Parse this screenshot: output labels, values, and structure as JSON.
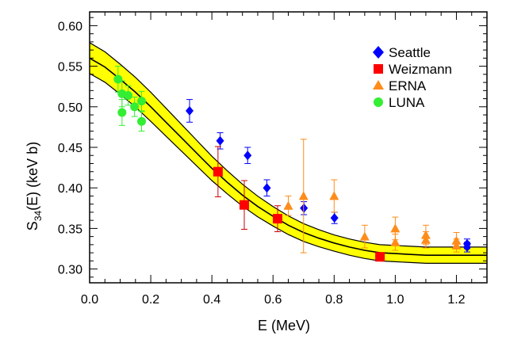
{
  "chart_data": {
    "type": "scatter",
    "xlabel": "E (MeV)",
    "ylabel_main": "S",
    "ylabel_sub": "34",
    "ylabel_rest": "(E) (keV b)",
    "xlim": [
      0.0,
      1.3
    ],
    "ylim": [
      0.283,
      0.617
    ],
    "x_ticks": [
      "0.0",
      "0.2",
      "0.4",
      "0.6",
      "0.8",
      "1.0",
      "1.2"
    ],
    "y_ticks": [
      "0.30",
      "0.35",
      "0.40",
      "0.45",
      "0.50",
      "0.55",
      "0.60"
    ],
    "grid": false,
    "legend_position": "top-right",
    "band_color": "#ffff00",
    "series": [
      {
        "name": "Seattle",
        "marker": "diamond",
        "color": "#0000ff",
        "points": [
          {
            "x": 0.327,
            "y": 0.495,
            "err": 0.014
          },
          {
            "x": 0.427,
            "y": 0.458,
            "err": 0.01
          },
          {
            "x": 0.517,
            "y": 0.44,
            "err": 0.01
          },
          {
            "x": 0.58,
            "y": 0.4,
            "err": 0.01
          },
          {
            "x": 0.701,
            "y": 0.375,
            "err": 0.008
          },
          {
            "x": 0.801,
            "y": 0.363,
            "err": 0.007
          },
          {
            "x": 1.235,
            "y": 0.327,
            "err": 0.006
          },
          {
            "x": 1.235,
            "y": 0.331,
            "err": 0.006
          }
        ]
      },
      {
        "name": "Weizmann",
        "marker": "square",
        "color": "#ff0000",
        "points": [
          {
            "x": 0.42,
            "y": 0.42,
            "err": 0.031
          },
          {
            "x": 0.506,
            "y": 0.379,
            "err": 0.03
          },
          {
            "x": 0.615,
            "y": 0.362,
            "err": 0.016
          },
          {
            "x": 0.95,
            "y": 0.315,
            "err": 0.004
          }
        ]
      },
      {
        "name": "ERNA",
        "marker": "triangle",
        "color": "#ff8c1a",
        "points": [
          {
            "x": 0.65,
            "y": 0.378,
            "err": 0.012
          },
          {
            "x": 0.7,
            "y": 0.39,
            "err": 0.07
          },
          {
            "x": 0.8,
            "y": 0.39,
            "err": 0.02
          },
          {
            "x": 0.9,
            "y": 0.34,
            "err": 0.014
          },
          {
            "x": 1.0,
            "y": 0.35,
            "err": 0.014
          },
          {
            "x": 1.0,
            "y": 0.333,
            "err": 0.01
          },
          {
            "x": 1.1,
            "y": 0.342,
            "err": 0.012
          },
          {
            "x": 1.1,
            "y": 0.336,
            "err": 0.01
          },
          {
            "x": 1.2,
            "y": 0.335,
            "err": 0.01
          },
          {
            "x": 1.2,
            "y": 0.329,
            "err": 0.008
          }
        ]
      },
      {
        "name": "LUNA",
        "marker": "circle",
        "color": "#33ee33",
        "points": [
          {
            "x": 0.093,
            "y": 0.534,
            "err": 0.016
          },
          {
            "x": 0.106,
            "y": 0.516,
            "err": 0.016
          },
          {
            "x": 0.106,
            "y": 0.493,
            "err": 0.016
          },
          {
            "x": 0.126,
            "y": 0.514,
            "err": 0.012
          },
          {
            "x": 0.147,
            "y": 0.5,
            "err": 0.012
          },
          {
            "x": 0.17,
            "y": 0.507,
            "err": 0.012
          },
          {
            "x": 0.17,
            "y": 0.482,
            "err": 0.012
          }
        ]
      }
    ],
    "fit_curve": [
      [
        0.0,
        0.56
      ],
      [
        0.05,
        0.549
      ],
      [
        0.1,
        0.534
      ],
      [
        0.15,
        0.518
      ],
      [
        0.2,
        0.5
      ],
      [
        0.25,
        0.481
      ],
      [
        0.3,
        0.462
      ],
      [
        0.35,
        0.443
      ],
      [
        0.4,
        0.424
      ],
      [
        0.45,
        0.407
      ],
      [
        0.5,
        0.391
      ],
      [
        0.55,
        0.377
      ],
      [
        0.6,
        0.365
      ],
      [
        0.65,
        0.354
      ],
      [
        0.7,
        0.345
      ],
      [
        0.75,
        0.338
      ],
      [
        0.8,
        0.332
      ],
      [
        0.85,
        0.327
      ],
      [
        0.9,
        0.323
      ],
      [
        0.95,
        0.32
      ],
      [
        1.0,
        0.319
      ],
      [
        1.05,
        0.318
      ],
      [
        1.1,
        0.317
      ],
      [
        1.15,
        0.317
      ],
      [
        1.2,
        0.317
      ],
      [
        1.25,
        0.317
      ],
      [
        1.3,
        0.317
      ]
    ],
    "band_halfwidth": [
      [
        0.0,
        0.019
      ],
      [
        0.2,
        0.018
      ],
      [
        0.4,
        0.015
      ],
      [
        0.6,
        0.012
      ],
      [
        0.8,
        0.01
      ],
      [
        1.0,
        0.01
      ],
      [
        1.3,
        0.01
      ]
    ]
  }
}
